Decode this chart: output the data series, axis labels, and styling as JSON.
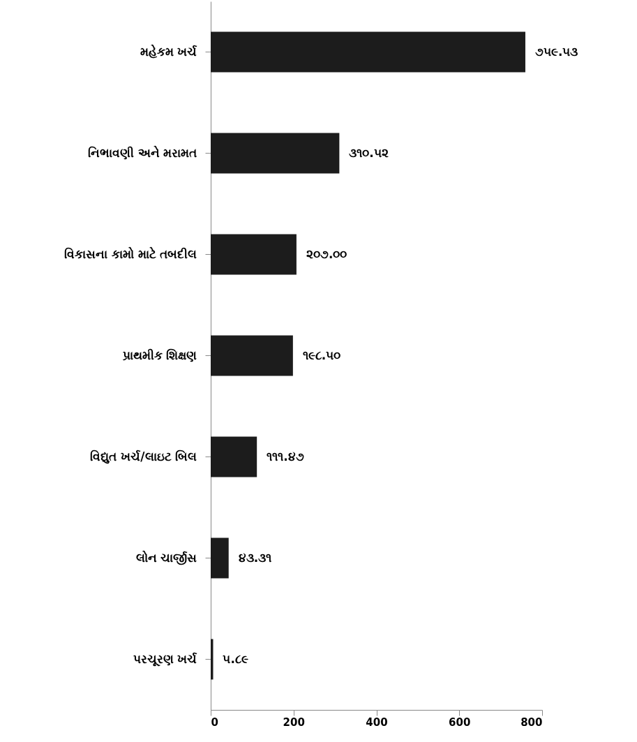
{
  "chart_data": {
    "type": "bar",
    "orientation": "horizontal",
    "categories": [
      "મહેકમ ખર્ચ",
      "નિભાવણી અને મરામત",
      "વિકાસના કામો માટે તબદીલ",
      "પ્રાથમીક શિક્ષણ",
      "વિદ્યુત ખર્ચ/લાઇટ બિલ",
      "લોન ચાર્જીસ",
      "પરચૂરણ ખર્ચ"
    ],
    "values": [
      759.53,
      310.52,
      207.0,
      198.5,
      111.47,
      43.31,
      5.89
    ],
    "value_labels": [
      "૭૫૯.૫૩",
      "૩૧૦.૫૨",
      "૨૦૭.૦૦",
      "૧૯૮.૫૦",
      "૧૧૧.૪૭",
      "૪૩.૩૧",
      "૫.૮૯"
    ],
    "color": "#1c1c1c",
    "xlim": [
      0,
      800
    ],
    "xticks": [
      0,
      200,
      400,
      600,
      800
    ],
    "grid": false
  }
}
